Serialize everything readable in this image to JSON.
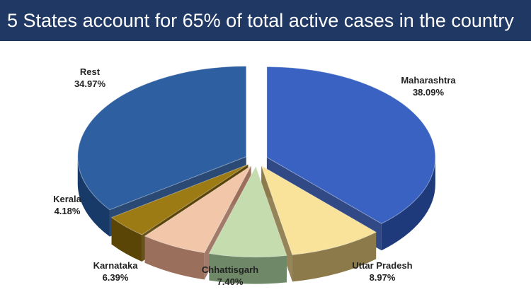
{
  "header": {
    "title": "5 States account for 65% of total active cases in the country"
  },
  "chart_data": {
    "type": "pie",
    "title": "5 States account for 65% of total active cases in the country",
    "exploded": true,
    "three_d": true,
    "slices": [
      {
        "label": "Maharashtra",
        "value": 38.09,
        "value_label": "38.09%",
        "color": "#3a62c2",
        "side_color": "#1f3a7a"
      },
      {
        "label": "Uttar Pradesh",
        "value": 8.97,
        "value_label": "8.97%",
        "color": "#f9e39a",
        "side_color": "#8c7a4a"
      },
      {
        "label": "Chhattisgarh",
        "value": 7.4,
        "value_label": "7.40%",
        "color": "#c4dcae",
        "side_color": "#6f8868"
      },
      {
        "label": "Karnataka",
        "value": 6.39,
        "value_label": "6.39%",
        "color": "#f2c6a8",
        "side_color": "#9a6f5c"
      },
      {
        "label": "Kerala",
        "value": 4.18,
        "value_label": "4.18%",
        "color": "#9c7a14",
        "side_color": "#5a4406"
      },
      {
        "label": "Rest",
        "value": 34.97,
        "value_label": "34.97%",
        "color": "#2e5fa0",
        "side_color": "#183a68"
      }
    ]
  }
}
